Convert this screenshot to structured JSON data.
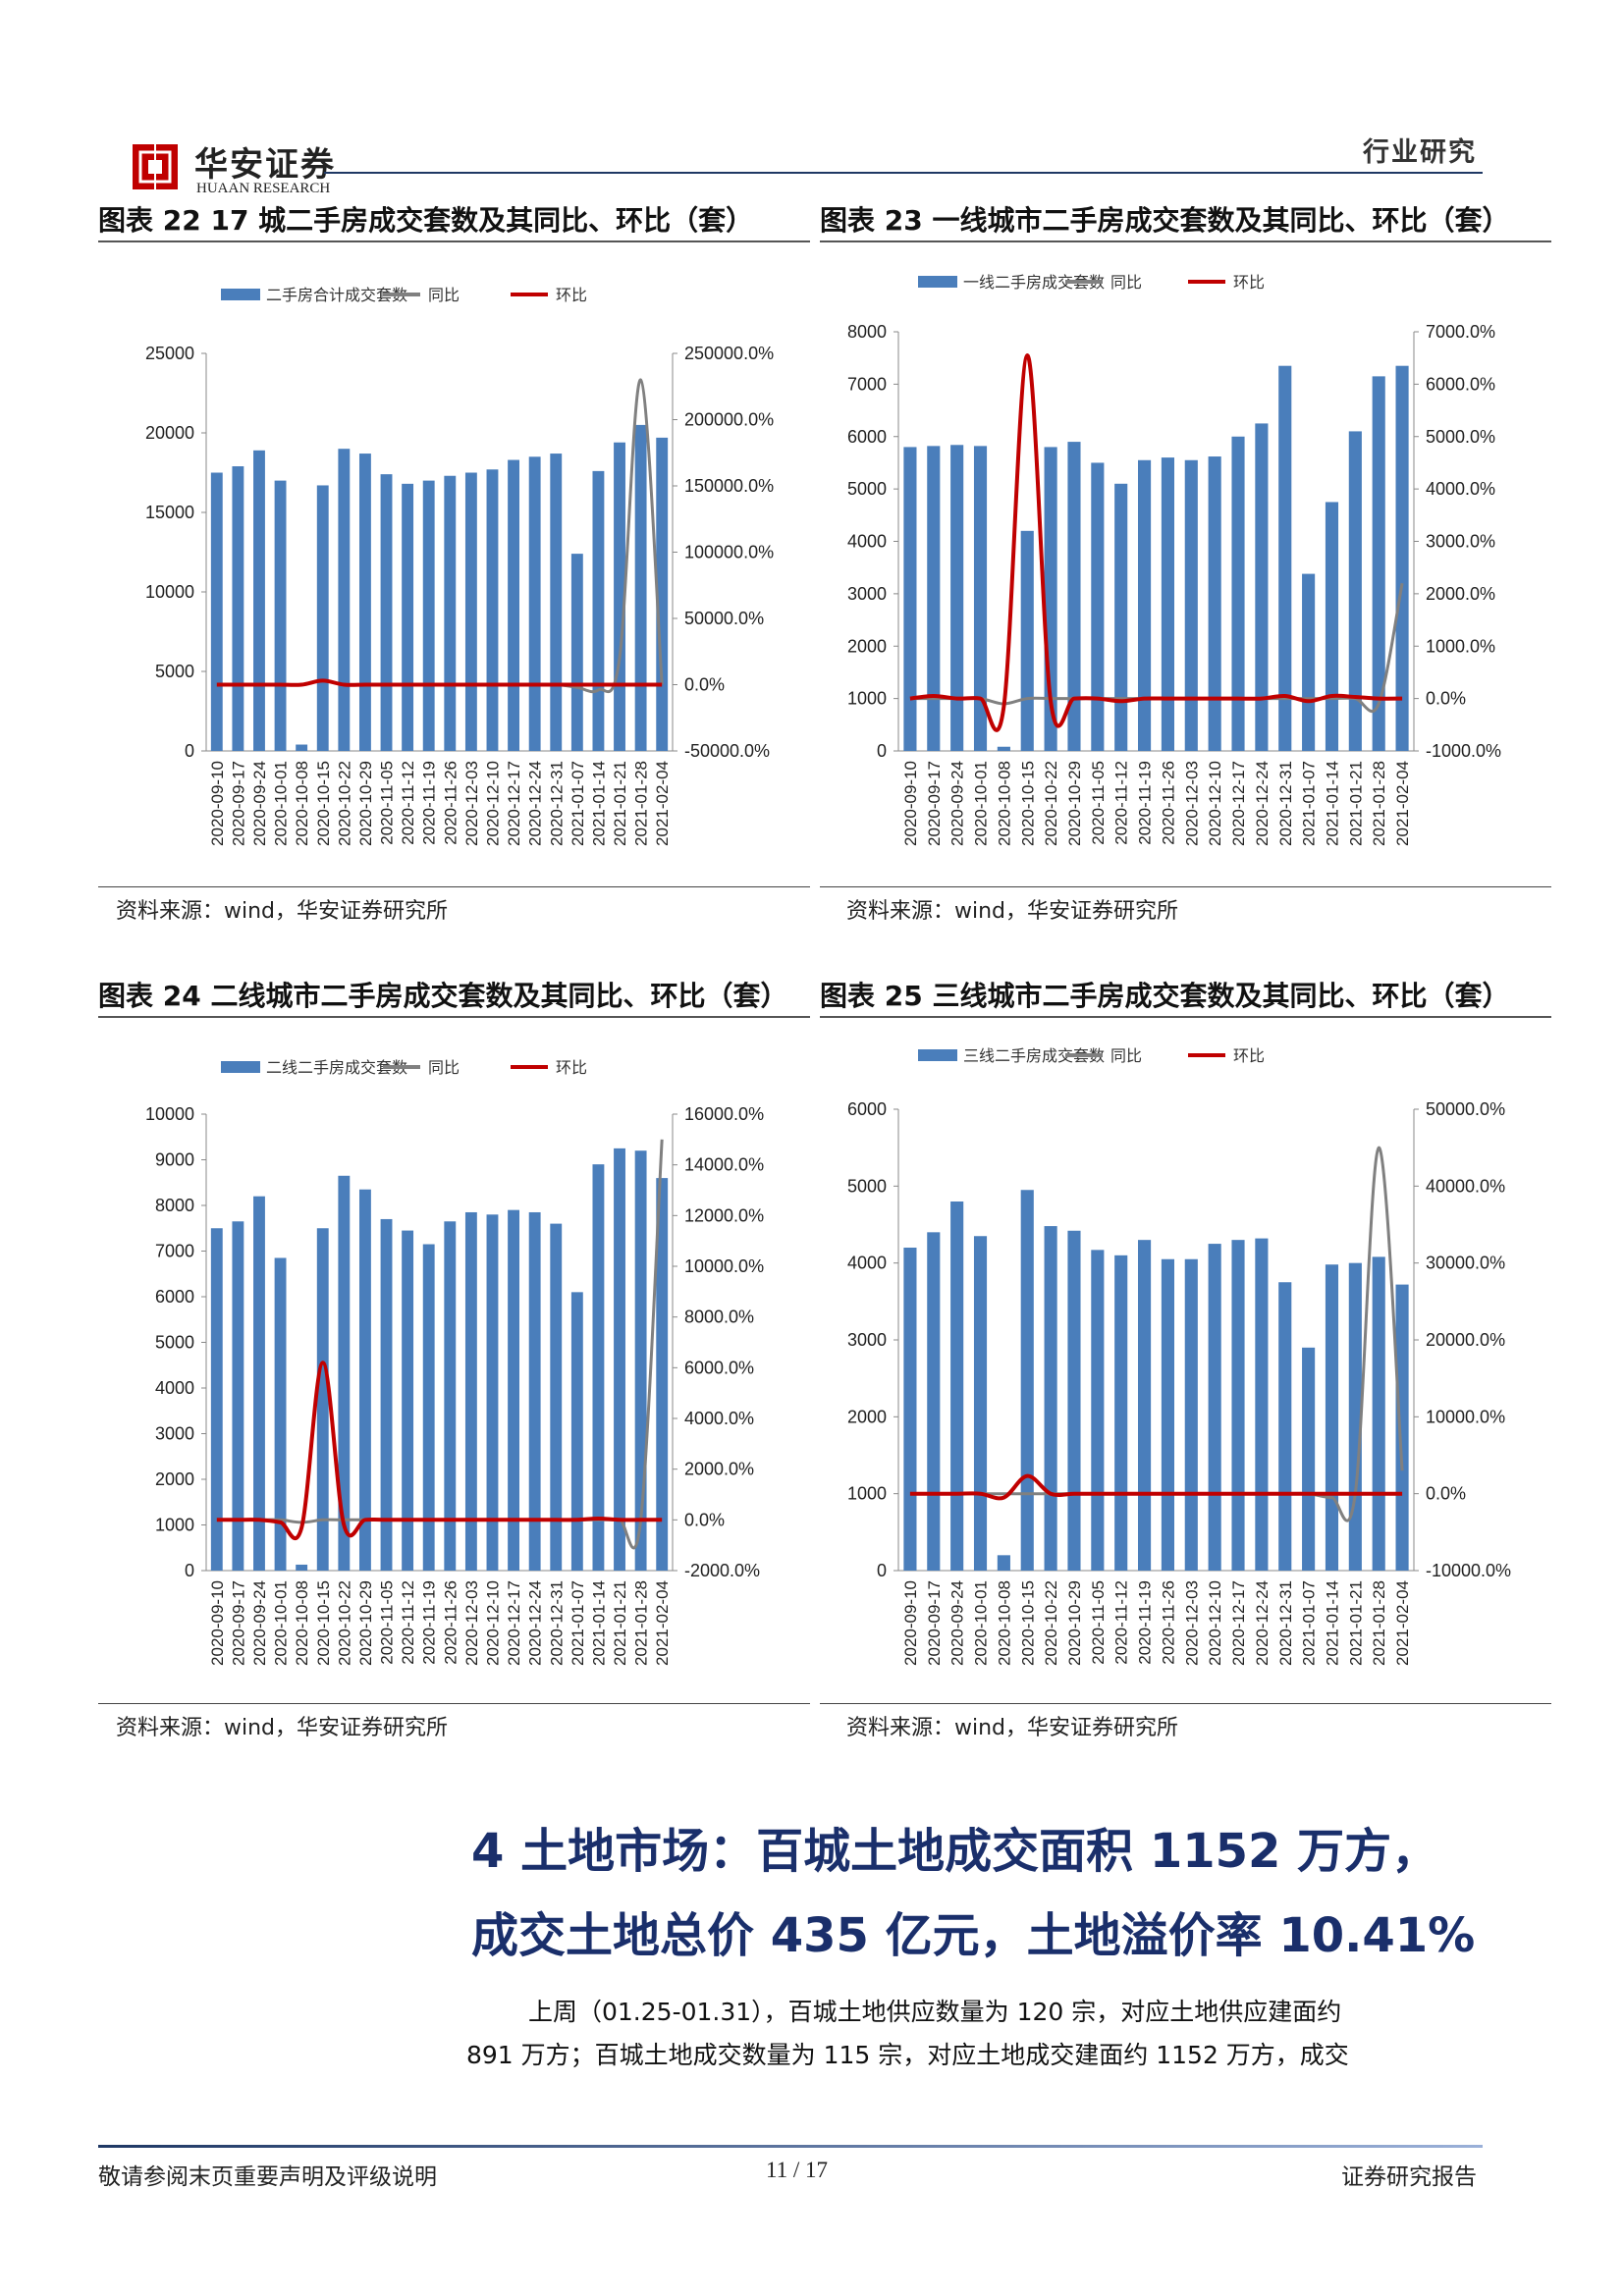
{
  "header": {
    "brand_cn": "华安证券",
    "brand_en": "HUAAN RESEARCH",
    "tag": "行业研究"
  },
  "figures": [
    {
      "title": "图表 22 17 城二手房成交套数及其同比、环比（套）",
      "source": "资料来源：wind，华安证券研究所"
    },
    {
      "title": "图表 23 一线城市二手房成交套数及其同比、环比（套）",
      "source": "资料来源：wind，华安证券研究所"
    },
    {
      "title": "图表 24 二线城市二手房成交套数及其同比、环比（套）",
      "source": "资料来源：wind，华安证券研究所"
    },
    {
      "title": "图表 25 三线城市二手房成交套数及其同比、环比（套）",
      "source": "资料来源：wind，华安证券研究所"
    }
  ],
  "colors": {
    "bar": "#4a7ebb",
    "yoy": "#808080",
    "mom": "#c00000",
    "title_blue": "#1a2f6b"
  },
  "chart_data": [
    {
      "type": "bar",
      "categories": [
        "2020-09-10",
        "2020-09-17",
        "2020-09-24",
        "2020-10-01",
        "2020-10-08",
        "2020-10-15",
        "2020-10-22",
        "2020-10-29",
        "2020-11-05",
        "2020-11-12",
        "2020-11-19",
        "2020-11-26",
        "2020-12-03",
        "2020-12-10",
        "2020-12-17",
        "2020-12-24",
        "2020-12-31",
        "2021-01-07",
        "2021-01-14",
        "2021-01-21",
        "2021-01-28",
        "2021-02-04"
      ],
      "legend": [
        "二手房合计成交套数",
        "同比",
        "环比"
      ],
      "series": [
        {
          "name": "二手房合计成交套数",
          "axis": "left",
          "values": [
            17500,
            17900,
            18900,
            17000,
            400,
            16700,
            19000,
            18700,
            17400,
            16800,
            17000,
            17300,
            17500,
            17700,
            18300,
            18500,
            18700,
            12400,
            17600,
            19400,
            20500,
            19700
          ]
        },
        {
          "name": "同比",
          "axis": "right",
          "values": [
            0,
            0,
            0,
            0,
            0,
            3000,
            0,
            0,
            0,
            0,
            0,
            0,
            0,
            0,
            0,
            0,
            0,
            -2000,
            -4000,
            20000,
            230000,
            0
          ]
        },
        {
          "name": "环比",
          "axis": "right",
          "values": [
            0,
            0,
            0,
            0,
            0,
            3000,
            0,
            0,
            0,
            0,
            0,
            0,
            0,
            0,
            0,
            0,
            0,
            0,
            0,
            0,
            0,
            0
          ]
        }
      ],
      "ylim_left": [
        0,
        25000
      ],
      "yticks_left": [
        "0",
        "5000",
        "10000",
        "15000",
        "20000",
        "25000"
      ],
      "ylim_right": [
        -50000,
        250000
      ],
      "yticks_right": [
        "-50000.0%",
        "0.0%",
        "50000.0%",
        "100000.0%",
        "150000.0%",
        "200000.0%",
        "250000.0%"
      ]
    },
    {
      "type": "bar",
      "categories": [
        "2020-09-10",
        "2020-09-17",
        "2020-09-24",
        "2020-10-01",
        "2020-10-08",
        "2020-10-15",
        "2020-10-22",
        "2020-10-29",
        "2020-11-05",
        "2020-11-12",
        "2020-11-19",
        "2020-11-26",
        "2020-12-03",
        "2020-12-10",
        "2020-12-17",
        "2020-12-24",
        "2020-12-31",
        "2021-01-07",
        "2021-01-14",
        "2021-01-21",
        "2021-01-28",
        "2021-02-04"
      ],
      "legend": [
        "一线二手房成交套数",
        "同比",
        "环比"
      ],
      "series": [
        {
          "name": "一线二手房成交套数",
          "axis": "left",
          "values": [
            5800,
            5820,
            5840,
            5820,
            80,
            4200,
            5800,
            5900,
            5500,
            5100,
            5550,
            5600,
            5550,
            5620,
            6000,
            6250,
            7350,
            3380,
            4750,
            6100,
            7150,
            7350
          ]
        },
        {
          "name": "同比",
          "axis": "right",
          "values": [
            0,
            0,
            0,
            0,
            -100,
            0,
            0,
            0,
            0,
            0,
            0,
            0,
            0,
            0,
            0,
            0,
            0,
            0,
            0,
            0,
            -100,
            2200
          ]
        },
        {
          "name": "环比",
          "axis": "right",
          "values": [
            0,
            50,
            0,
            0,
            -150,
            6550,
            -50,
            0,
            0,
            -50,
            0,
            0,
            0,
            0,
            0,
            0,
            50,
            -50,
            50,
            30,
            0,
            0
          ]
        }
      ],
      "ylim_left": [
        0,
        8000
      ],
      "yticks_left": [
        "0",
        "1000",
        "2000",
        "3000",
        "4000",
        "5000",
        "6000",
        "7000",
        "8000"
      ],
      "ylim_right": [
        -1000,
        7000
      ],
      "yticks_right": [
        "-1000.0%",
        "0.0%",
        "1000.0%",
        "2000.0%",
        "3000.0%",
        "4000.0%",
        "5000.0%",
        "6000.0%",
        "7000.0%"
      ]
    },
    {
      "type": "bar",
      "categories": [
        "2020-09-10",
        "2020-09-17",
        "2020-09-24",
        "2020-10-01",
        "2020-10-08",
        "2020-10-15",
        "2020-10-22",
        "2020-10-29",
        "2020-11-05",
        "2020-11-12",
        "2020-11-19",
        "2020-11-26",
        "2020-12-03",
        "2020-12-10",
        "2020-12-17",
        "2020-12-24",
        "2020-12-31",
        "2021-01-07",
        "2021-01-14",
        "2021-01-21",
        "2021-01-28",
        "2021-02-04"
      ],
      "legend": [
        "二线二手房成交套数",
        "同比",
        "环比"
      ],
      "series": [
        {
          "name": "二线二手房成交套数",
          "axis": "left",
          "values": [
            7500,
            7650,
            8200,
            6850,
            130,
            7500,
            8650,
            8350,
            7700,
            7450,
            7150,
            7650,
            7850,
            7800,
            7900,
            7850,
            7600,
            6100,
            8900,
            9250,
            9200,
            8600
          ]
        },
        {
          "name": "同比",
          "axis": "right",
          "values": [
            0,
            0,
            0,
            0,
            -100,
            0,
            0,
            0,
            0,
            0,
            0,
            0,
            0,
            0,
            0,
            0,
            0,
            0,
            0,
            0,
            0,
            15000
          ]
        },
        {
          "name": "环比",
          "axis": "right",
          "values": [
            0,
            0,
            0,
            -100,
            -300,
            6200,
            -200,
            0,
            0,
            0,
            0,
            0,
            0,
            0,
            0,
            0,
            0,
            0,
            50,
            0,
            0,
            0
          ]
        }
      ],
      "ylim_left": [
        0,
        10000
      ],
      "yticks_left": [
        "0",
        "1000",
        "2000",
        "3000",
        "4000",
        "5000",
        "6000",
        "7000",
        "8000",
        "9000",
        "10000"
      ],
      "ylim_right": [
        -2000,
        16000
      ],
      "yticks_right": [
        "-2000.0%",
        "0.0%",
        "2000.0%",
        "4000.0%",
        "6000.0%",
        "8000.0%",
        "10000.0%",
        "12000.0%",
        "14000.0%",
        "16000.0%"
      ]
    },
    {
      "type": "bar",
      "categories": [
        "2020-09-10",
        "2020-09-17",
        "2020-09-24",
        "2020-10-01",
        "2020-10-08",
        "2020-10-15",
        "2020-10-22",
        "2020-10-29",
        "2020-11-05",
        "2020-11-12",
        "2020-11-19",
        "2020-11-26",
        "2020-12-03",
        "2020-12-10",
        "2020-12-17",
        "2020-12-24",
        "2020-12-31",
        "2021-01-07",
        "2021-01-14",
        "2021-01-21",
        "2021-01-28",
        "2021-02-04"
      ],
      "legend": [
        "三线二手房成交套数",
        "同比",
        "环比"
      ],
      "series": [
        {
          "name": "三线二手房成交套数",
          "axis": "left",
          "values": [
            4200,
            4400,
            4800,
            4350,
            200,
            4950,
            4480,
            4420,
            4170,
            4100,
            4300,
            4050,
            4050,
            4250,
            4300,
            4320,
            3750,
            2900,
            3980,
            4000,
            4080,
            3720
          ]
        },
        {
          "name": "同比",
          "axis": "right",
          "values": [
            0,
            0,
            0,
            0,
            0,
            0,
            0,
            0,
            0,
            0,
            0,
            0,
            0,
            0,
            0,
            0,
            0,
            0,
            -500,
            0,
            45000,
            3000
          ]
        },
        {
          "name": "环比",
          "axis": "right",
          "values": [
            0,
            0,
            0,
            0,
            -500,
            2300,
            0,
            0,
            0,
            0,
            0,
            0,
            0,
            0,
            0,
            0,
            0,
            0,
            0,
            0,
            0,
            0
          ]
        }
      ],
      "ylim_left": [
        0,
        6000
      ],
      "yticks_left": [
        "0",
        "1000",
        "2000",
        "3000",
        "4000",
        "5000",
        "6000"
      ],
      "ylim_right": [
        -10000,
        50000
      ],
      "yticks_right": [
        "-10000.0%",
        "0.0%",
        "10000.0%",
        "20000.0%",
        "30000.0%",
        "40000.0%",
        "50000.0%"
      ]
    }
  ],
  "section": {
    "title_line1": "4 土地市场：百城土地成交面积 1152 万方，",
    "title_line2": "成交土地总价 435 亿元，土地溢价率 10.41%",
    "para_line1": "上周（01.25-01.31），百城土地供应数量为 120 宗，对应土地供应建面约",
    "para_line2": "891 万方；百城土地成交数量为 115 宗，对应土地成交建面约 1152 万方，成交"
  },
  "footer": {
    "left": "敬请参阅末页重要声明及评级说明",
    "page": "11 / 17",
    "right": "证券研究报告"
  }
}
